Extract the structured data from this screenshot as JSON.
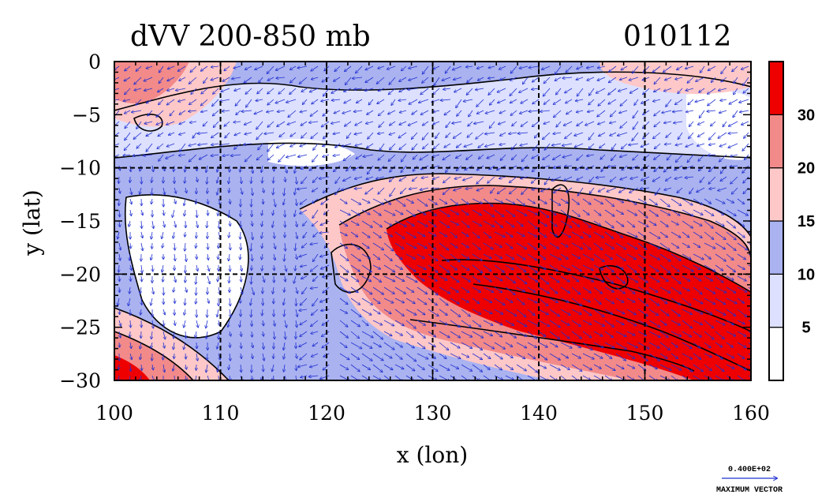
{
  "chart_data": {
    "type": "heatmap",
    "title": "dVV 200-850 mb",
    "date_label": "010112",
    "xlabel": "x (lon)",
    "ylabel": "y (lat)",
    "xlim": [
      100,
      160
    ],
    "ylim": [
      -30,
      0
    ],
    "x_ticks": [
      100,
      110,
      120,
      130,
      140,
      150,
      160
    ],
    "y_ticks": [
      0,
      -5,
      -10,
      -15,
      -20,
      -25,
      -30
    ],
    "gridlines": {
      "lon": [
        110,
        120,
        130,
        140,
        150
      ],
      "lat": [
        -10,
        -20
      ]
    },
    "colorbar": {
      "levels": [
        5,
        10,
        15,
        20,
        30
      ],
      "labels": [
        "5",
        "10",
        "15",
        "20",
        "30"
      ],
      "colors": [
        "#ffffff",
        "#dde0ff",
        "#aab2f0",
        "#ffc8c8",
        "#f28a8a",
        "#ee0000"
      ]
    },
    "vector_reference": {
      "value": "0.400E+02",
      "label": "MAXIMUM VECTOR"
    },
    "field": {
      "type": "approximate-regions",
      "regions": [
        {
          "name": "jet core",
          "level_min": 30,
          "lon_range": [
            126,
            160
          ],
          "lat_range": [
            -29,
            -12
          ]
        },
        {
          "name": "outer jet band",
          "level_min": 15,
          "lon_range": [
            118,
            160
          ],
          "lat_range": [
            -30,
            -10
          ]
        },
        {
          "name": "north-west band",
          "level_min": 15,
          "lon_range": [
            100,
            112
          ],
          "lat_range": [
            -10,
            0
          ]
        },
        {
          "name": "south-west corner",
          "level_min": 20,
          "lon_range": [
            100,
            108
          ],
          "lat_range": [
            -30,
            -25
          ]
        },
        {
          "name": "western low-shear area",
          "level_min": 0,
          "lon_range": [
            100,
            118
          ],
          "lat_range": [
            -27,
            -12
          ]
        }
      ]
    }
  }
}
